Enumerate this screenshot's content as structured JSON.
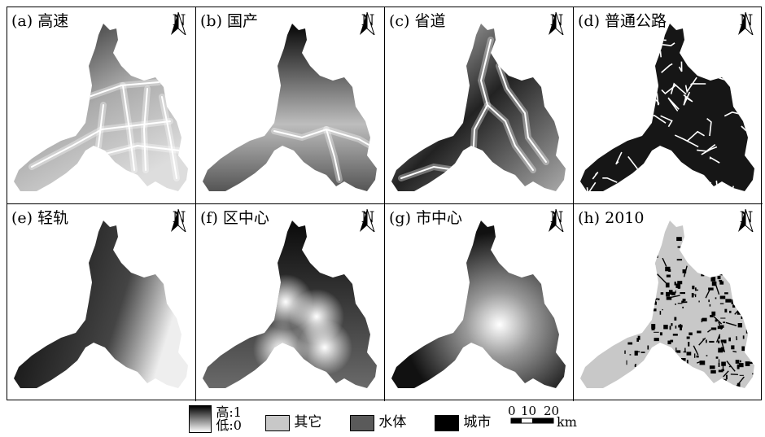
{
  "panels": [
    {
      "label": "(a) 高速",
      "kind": "highway"
    },
    {
      "label": "(b) 国产",
      "kind": "national"
    },
    {
      "label": "(c) 省道",
      "kind": "provincial"
    },
    {
      "label": "(d) 普通公路",
      "kind": "ordinary"
    },
    {
      "label": "(e) 轻轨",
      "kind": "rail"
    },
    {
      "label": "(f) 区中心",
      "kind": "district"
    },
    {
      "label": "(g) 市中心",
      "kind": "citycenter"
    },
    {
      "label": "(h) 2010",
      "kind": "landuse"
    }
  ],
  "north_label": "N",
  "legend": {
    "gradient_high": "高:1",
    "gradient_low": "低:0",
    "other": "其它",
    "water": "水体",
    "city": "城市",
    "scale_ticks": [
      "0",
      "10",
      "20"
    ],
    "scale_unit": "km"
  },
  "colors": {
    "other": "#c8c8c8",
    "water": "#5a5a5a",
    "city": "#000000",
    "frame": "#000000"
  }
}
